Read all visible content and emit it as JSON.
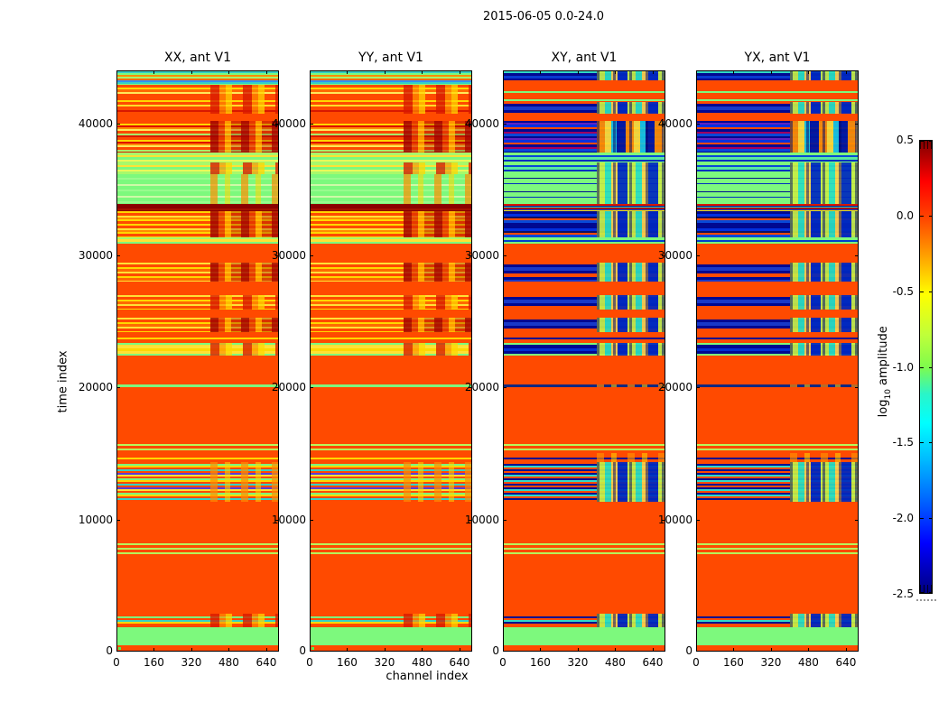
{
  "figure": {
    "background": "#FFFFFF"
  },
  "chart_data": {
    "type": "heatmap",
    "title": "2015-06-05 0.0-24.0",
    "xlabel": "channel index",
    "ylabel": "time index",
    "xlim": [
      0,
      694
    ],
    "ylim": [
      0,
      44000
    ],
    "xticks": [
      0,
      160,
      320,
      480,
      640
    ],
    "yticks": [
      0,
      10000,
      20000,
      30000,
      40000
    ],
    "panels": [
      {
        "key": "xx",
        "title": "XX, ant V1",
        "group": "A",
        "origin_dot": true
      },
      {
        "key": "yy",
        "title": "YY, ant V1",
        "group": "A",
        "origin_dot": true
      },
      {
        "key": "xy",
        "title": "XY, ant V1",
        "group": "B",
        "origin_dot": false
      },
      {
        "key": "yx",
        "title": "YX, ant V1",
        "group": "B",
        "origin_dot": false
      }
    ],
    "origin_dot_color": "#4CF04C",
    "colorbar": {
      "label_prefix": "log",
      "label_sub": "10",
      "label_suffix": " amplitude",
      "vmin": -2.5,
      "vmax": 0.5,
      "tick_labels": [
        "0.5",
        "0.0",
        "-0.5",
        "-1.0",
        "-1.5",
        "-2.0",
        "-2.5"
      ],
      "tick_values": [
        0.5,
        0.0,
        -0.5,
        -1.0,
        -1.5,
        -2.0,
        -2.5
      ],
      "gradient": [
        {
          "p": 0,
          "c": "#800000"
        },
        {
          "p": 9,
          "c": "#FF0000"
        },
        {
          "p": 17,
          "c": "#FF4400"
        },
        {
          "p": 34,
          "c": "#FFFF00"
        },
        {
          "p": 43,
          "c": "#BFFF3A"
        },
        {
          "p": 50,
          "c": "#7FFB4C"
        },
        {
          "p": 56,
          "c": "#2AF5C8"
        },
        {
          "p": 62.5,
          "c": "#00FFFF"
        },
        {
          "p": 70,
          "c": "#00BFFF"
        },
        {
          "p": 80,
          "c": "#0060FF"
        },
        {
          "p": 89,
          "c": "#0000FF"
        },
        {
          "p": 100,
          "c": "#000080"
        }
      ]
    },
    "styles": {
      "or": {
        "colors": [
          "#FF4A00"
        ]
      },
      "gr": {
        "colors": [
          "#7DF97D"
        ]
      },
      "dr": {
        "colors": [
          "#8B0000",
          "#A51000"
        ],
        "weights": [
          5,
          2
        ]
      },
      "warmDense": {
        "colors": [
          "#FF4A00",
          "#FFD700",
          "#E00000",
          "#FF8C00",
          "#FFE85A",
          "#FF4A00",
          "#A8F96A",
          "#D81800"
        ],
        "weights": [
          3,
          2,
          2,
          2,
          2,
          3,
          2,
          2
        ]
      },
      "yellowOrangeDense": {
        "colors": [
          "#FFD700",
          "#FF4A00",
          "#FFE135",
          "#FF8C00",
          "#FFD700",
          "#FF4A00"
        ],
        "weights": [
          2,
          3,
          2,
          2,
          2,
          3
        ]
      },
      "warmStripes": {
        "colors": [
          "#FF4A00",
          "#FFDC28",
          "#FF4A00",
          "#D81800"
        ],
        "weights": [
          3,
          2,
          4,
          2
        ]
      },
      "warmYellow": {
        "colors": [
          "#FF4A00",
          "#FFD700",
          "#FF6A00",
          "#FFE85A",
          "#FF4A00"
        ],
        "weights": [
          3,
          2,
          3,
          2,
          4
        ]
      },
      "yellowStripes": {
        "colors": [
          "#FFE135",
          "#FF4A00",
          "#FFD700",
          "#FF6A00"
        ],
        "weights": [
          2,
          3,
          2,
          3
        ]
      },
      "greenYellow": {
        "colors": [
          "#A8F96A",
          "#FFE135",
          "#7DF97D",
          "#E8F95A"
        ],
        "weights": [
          3,
          2,
          3,
          2
        ]
      },
      "greenFaint": {
        "colors": [
          "#7DF97D",
          "#98FB8E",
          "#7DF97D",
          "#CFF9A8"
        ],
        "weights": [
          4,
          2,
          5,
          2
        ]
      },
      "orangeYellowThin": {
        "colors": [
          "#FF4A00",
          "#FFD700"
        ],
        "weights": [
          6,
          2
        ]
      },
      "thinMixA": {
        "colors": [
          "#FF4A00",
          "#7DF97D",
          "#FF4A00",
          "#35D0C5",
          "#FFD700",
          "#FF4A00"
        ],
        "weights": [
          3,
          2,
          2,
          2,
          2,
          3
        ]
      },
      "denseThinA": {
        "colors": [
          "#FF4A00",
          "#7DF97D",
          "#FFD700",
          "#FF4A00",
          "#35D0C5",
          "#FF4A00",
          "#5A3BD8",
          "#FFE135"
        ],
        "weights": [
          2,
          2,
          2,
          2,
          2,
          2,
          2,
          2
        ]
      },
      "greenLines3": {
        "colors": [
          "#FF4A00",
          "#B8F95A",
          "#FF4A00",
          "#B8F95A",
          "#FF4A00",
          "#B8F95A",
          "#FF4A00"
        ],
        "weights": [
          2,
          2,
          3,
          2,
          3,
          2,
          4
        ]
      },
      "twoGreenLines": {
        "colors": [
          "#FF4A00",
          "#B8F95A",
          "#FF4A00",
          "#B8F95A",
          "#FF4A00"
        ],
        "weights": [
          3,
          2,
          3,
          2,
          3
        ]
      },
      "greenLine1": {
        "colors": [
          "#7DF97D"
        ]
      },
      "navyLine1": {
        "colors": [
          "#102880"
        ]
      },
      "topMixA": {
        "colors": [
          "#35D0C5",
          "#7DF97D",
          "#FF8C00",
          "#A8F96A",
          "#FF6A00",
          "#7DF97D"
        ],
        "weights": [
          2,
          2,
          2,
          2,
          2,
          2
        ]
      },
      "cyanLineA": {
        "colors": [
          "#3090F0",
          "#35D0C5",
          "#7DF97D"
        ],
        "weights": [
          2,
          2,
          2
        ]
      },
      "yellowBandGE": {
        "colors": [
          "#7DF97D",
          "#FFE135",
          "#FFD700",
          "#FFE135",
          "#7DF97D"
        ],
        "weights": [
          2,
          4,
          3,
          3,
          2
        ]
      },
      "orangeOneYellow": {
        "colors": [
          "#FF4A00",
          "#FFD700",
          "#FF4A00"
        ],
        "weights": [
          5,
          2,
          5
        ]
      },
      "navyDense": {
        "colors": [
          "#000890",
          "#0030E0",
          "#101060",
          "#FF4A00",
          "#0848D8",
          "#000890"
        ],
        "weights": [
          3,
          3,
          2,
          2,
          3,
          3
        ]
      },
      "navyBands": {
        "colors": [
          "#FF4A00",
          "#000890",
          "#1838C8",
          "#000890",
          "#FF4A00"
        ],
        "weights": [
          2,
          3,
          4,
          3,
          2
        ]
      },
      "navyPurpleDense": {
        "colors": [
          "#000890",
          "#6020C0",
          "#0030E0",
          "#FF4A00",
          "#000890",
          "#A00060",
          "#0848D8"
        ],
        "weights": [
          2,
          2,
          3,
          2,
          3,
          2,
          3
        ]
      },
      "greenNavyThin": {
        "colors": [
          "#7DF97D",
          "#001090",
          "#7DF97D",
          "#0030C0",
          "#7DF97D"
        ],
        "weights": [
          4,
          1,
          5,
          1,
          4
        ]
      },
      "greenBlue": {
        "colors": [
          "#7DF97D",
          "#0848D8",
          "#58E8A0",
          "#0030C0",
          "#7DF97D"
        ],
        "weights": [
          3,
          2,
          3,
          2,
          3
        ]
      },
      "noisyMulti": {
        "colors": [
          "#D81800",
          "#001090",
          "#35D0C5",
          "#A00000",
          "#0848D8",
          "#FFD700"
        ],
        "weights": [
          2,
          1,
          1,
          2,
          1,
          1
        ]
      },
      "orangeNavyThin": {
        "colors": [
          "#FF4A00",
          "#001090"
        ],
        "weights": [
          6,
          2
        ]
      },
      "orangeGreenThin": {
        "colors": [
          "#FF4A00",
          "#7DF97D"
        ],
        "weights": [
          7,
          2
        ]
      },
      "thinMixB": {
        "colors": [
          "#FF4A00",
          "#001090",
          "#FF4A00",
          "#30D8C8",
          "#001090",
          "#FF4A00"
        ],
        "weights": [
          3,
          2,
          2,
          2,
          2,
          3
        ]
      },
      "denseThinB": {
        "colors": [
          "#FF4A00",
          "#001090",
          "#30D8C8",
          "#FF4A00",
          "#001090",
          "#FF4A00",
          "#001090",
          "#30D8C8"
        ],
        "weights": [
          2,
          2,
          2,
          2,
          2,
          2,
          2,
          2
        ]
      },
      "navyTop": {
        "colors": [
          "#30D8C8",
          "#000890",
          "#0838D0",
          "#000890"
        ],
        "weights": [
          2,
          3,
          3,
          3
        ]
      },
      "navyBandGE": {
        "colors": [
          "#7DF97D",
          "#000890",
          "#0030D0",
          "#000890",
          "#7DF97D"
        ],
        "weights": [
          2,
          4,
          3,
          3,
          2
        ]
      },
      "greenYellowBand": {
        "colors": [
          "#A8F96A",
          "#FFE135",
          "#7DF97D"
        ],
        "weights": [
          2,
          3,
          2
        ]
      },
      "greenNavyBand": {
        "colors": [
          "#7DF97D",
          "#0040D0",
          "#7DF97D"
        ],
        "weights": [
          3,
          2,
          3
        ]
      },
      "orangeOneNavy": {
        "colors": [
          "#FF4A00",
          "#001090",
          "#FF4A00"
        ],
        "weights": [
          5,
          2,
          5
        ]
      }
    },
    "blotches": {
      "bw": {
        "colors": [
          "rgba(216,24,0,0.85)",
          "rgba(255,144,0,0.7)",
          "rgba(255,215,0,0.8)",
          "rgba(255,74,0,0)"
        ],
        "widths": [
          10,
          7,
          7,
          12
        ]
      },
      "bdr": {
        "colors": [
          "rgba(160,0,0,0.9)",
          "rgba(224,48,0,0.8)",
          "rgba(255,176,0,0.8)",
          "rgba(139,0,0,0.35)"
        ],
        "widths": [
          9,
          7,
          7,
          11
        ]
      },
      "bg": {
        "colors": [
          "rgba(255,140,0,0.75)",
          "rgba(255,74,0,0)",
          "rgba(255,215,0,0.6)",
          "rgba(255,74,0,0)"
        ],
        "widths": [
          8,
          8,
          6,
          12
        ]
      },
      "bc": {
        "colors": [
          "#C8EF45",
          "#2BE0C0",
          "#FFD24A",
          "#0028C0"
        ],
        "widths": [
          9,
          7,
          7,
          11
        ],
        "columns": true
      },
      "bwB": {
        "colors": [
          "#FF9000",
          "#FFE135",
          "#18C8E0",
          "#0018A0"
        ],
        "widths": [
          9,
          7,
          6,
          10
        ],
        "columns": true
      }
    },
    "bands": [
      {
        "t0": 43300,
        "t1": 44000,
        "A": "topMixA",
        "B": "navyTop",
        "bB": "bc"
      },
      {
        "t0": 43000,
        "t1": 43300,
        "A": "cyanLineA",
        "B": "orangeNavyThin"
      },
      {
        "t0": 41700,
        "t1": 43000,
        "A": "warmYellow",
        "B": "orangeGreenThin",
        "bA": "bw"
      },
      {
        "t0": 40800,
        "t1": 41700,
        "A": "warmStripes",
        "B": "navyBands",
        "bA": "bw",
        "bB": "bc"
      },
      {
        "t0": 40200,
        "t1": 40800,
        "A": "or",
        "B": "or"
      },
      {
        "t0": 37800,
        "t1": 40200,
        "A": "warmDense",
        "B": "navyPurpleDense",
        "bA": "bdr",
        "bB": "bwB"
      },
      {
        "t0": 37100,
        "t1": 37800,
        "A": "greenYellow",
        "B": "greenBlue"
      },
      {
        "t0": 36200,
        "t1": 37100,
        "A": "greenYellow",
        "B": "greenBlue",
        "bA": "bw",
        "bB": "bc"
      },
      {
        "t0": 33900,
        "t1": 36200,
        "A": "greenFaint",
        "B": "greenNavyThin",
        "bA": "bg",
        "bB": "bc"
      },
      {
        "t0": 33400,
        "t1": 33900,
        "A": "dr",
        "B": "noisyMulti"
      },
      {
        "t0": 31400,
        "t1": 33400,
        "A": "yellowOrangeDense",
        "B": "navyDense",
        "bA": "bdr",
        "bB": "bc"
      },
      {
        "t0": 30900,
        "t1": 31400,
        "A": "greenYellowBand",
        "B": "greenNavyBand"
      },
      {
        "t0": 29500,
        "t1": 30900,
        "A": "or",
        "B": "or"
      },
      {
        "t0": 28000,
        "t1": 29500,
        "A": "yellowStripes",
        "B": "navyBands",
        "bA": "bdr",
        "bB": "bc"
      },
      {
        "t0": 27000,
        "t1": 28000,
        "A": "or",
        "B": "or"
      },
      {
        "t0": 25900,
        "t1": 27000,
        "A": "yellowStripes",
        "B": "navyBands",
        "bA": "bw",
        "bB": "bc"
      },
      {
        "t0": 25300,
        "t1": 25900,
        "A": "or",
        "B": "or"
      },
      {
        "t0": 24200,
        "t1": 25300,
        "A": "yellowStripes",
        "B": "navyBands",
        "bA": "bdr",
        "bB": "bc"
      },
      {
        "t0": 23400,
        "t1": 24200,
        "A": "orangeYellowThin",
        "B": "orangeNavyThin"
      },
      {
        "t0": 22400,
        "t1": 23400,
        "A": "yellowBandGE",
        "B": "navyBandGE",
        "bA": "bw",
        "bB": "bc"
      },
      {
        "t0": 20200,
        "t1": 22400,
        "A": "or",
        "B": "or"
      },
      {
        "t0": 20000,
        "t1": 20200,
        "A": "greenLine1",
        "B": "navyLine1",
        "bB": "bg"
      },
      {
        "t0": 15900,
        "t1": 20000,
        "A": "or",
        "B": "or"
      },
      {
        "t0": 15000,
        "t1": 15900,
        "A": "twoGreenLines",
        "B": "twoGreenLines"
      },
      {
        "t0": 14300,
        "t1": 15000,
        "A": "orangeOneYellow",
        "B": "orangeOneNavy",
        "bB": "bg"
      },
      {
        "t0": 11300,
        "t1": 14300,
        "A": "denseThinA",
        "B": "denseThinB",
        "bA": "bg",
        "bB": "bc"
      },
      {
        "t0": 8300,
        "t1": 11300,
        "A": "or",
        "B": "or"
      },
      {
        "t0": 7100,
        "t1": 8300,
        "A": "greenLines3",
        "B": "greenLines3"
      },
      {
        "t0": 2800,
        "t1": 7100,
        "A": "or",
        "B": "or"
      },
      {
        "t0": 1800,
        "t1": 2800,
        "A": "thinMixA",
        "B": "thinMixB",
        "bA": "bw",
        "bB": "bc"
      },
      {
        "t0": 400,
        "t1": 1800,
        "A": "gr",
        "B": "gr"
      },
      {
        "t0": 0,
        "t1": 400,
        "A": "or",
        "B": "or"
      }
    ]
  }
}
